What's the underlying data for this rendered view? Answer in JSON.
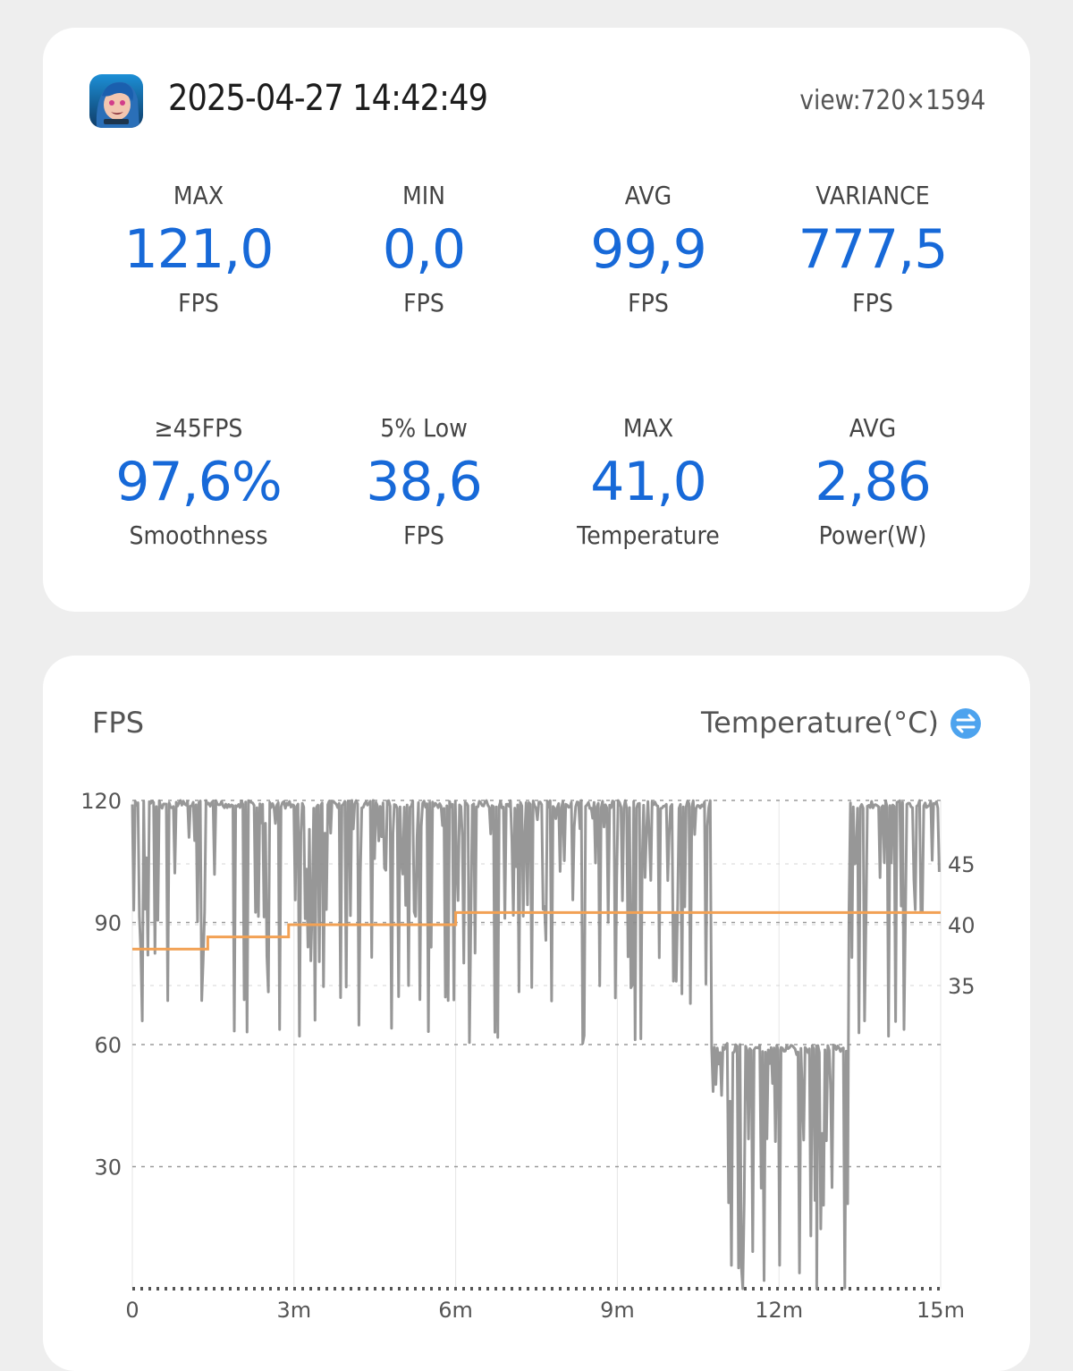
{
  "header": {
    "timestamp": "2025-04-27 14:42:49",
    "view": "view:720×1594"
  },
  "stats": [
    {
      "label": "MAX",
      "value": "121,0",
      "unit": "FPS"
    },
    {
      "label": "MIN",
      "value": "0,0",
      "unit": "FPS"
    },
    {
      "label": "AVG",
      "value": "99,9",
      "unit": "FPS"
    },
    {
      "label": "VARIANCE",
      "value": "777,5",
      "unit": "FPS"
    },
    {
      "label": "≥45FPS",
      "value": "97,6%",
      "unit": "Smoothness"
    },
    {
      "label": "5% Low",
      "value": "38,6",
      "unit": "FPS"
    },
    {
      "label": "MAX",
      "value": "41,0",
      "unit": "Temperature"
    },
    {
      "label": "AVG",
      "value": "2,86",
      "unit": "Power(W)"
    }
  ],
  "chart": {
    "left_title": "FPS",
    "right_title": "Temperature(°C)"
  },
  "colors": {
    "accent": "#1769d8",
    "fps_line": "#8c8c8c",
    "temp_line": "#f2a154",
    "swap_icon": "#4da3ee"
  },
  "chart_data": {
    "type": "line",
    "x_unit": "minutes",
    "xlim": [
      0,
      15
    ],
    "x_ticks": [
      "0",
      "3m",
      "6m",
      "9m",
      "12m",
      "15m"
    ],
    "y_left": {
      "ticks": [
        "120",
        "90",
        "60",
        "30"
      ],
      "lim": [
        0,
        120
      ]
    },
    "y_right": {
      "ticks": [
        "45",
        "40",
        "35"
      ]
    },
    "series": [
      {
        "name": "FPS",
        "axis": "left",
        "segments": [
          {
            "x_start": 0,
            "x_end": 10.75,
            "base": 120,
            "typical_dips": [
              110,
              100,
              90,
              80,
              70,
              60
            ]
          },
          {
            "x_start": 10.75,
            "x_end": 13.3,
            "base": 60,
            "typical_dips": [
              55,
              45,
              35,
              20,
              10,
              5,
              0
            ]
          },
          {
            "x_start": 13.3,
            "x_end": 15,
            "base": 120,
            "typical_dips": [
              100,
              90,
              80,
              60
            ]
          }
        ],
        "min": 0,
        "max": 121
      },
      {
        "name": "Temperature(°C)",
        "axis": "right",
        "steps": [
          {
            "x": 0,
            "y": 38
          },
          {
            "x": 1.4,
            "y": 39
          },
          {
            "x": 2.9,
            "y": 40
          },
          {
            "x": 6.0,
            "y": 41
          },
          {
            "x": 15,
            "y": 41
          }
        ]
      }
    ]
  }
}
